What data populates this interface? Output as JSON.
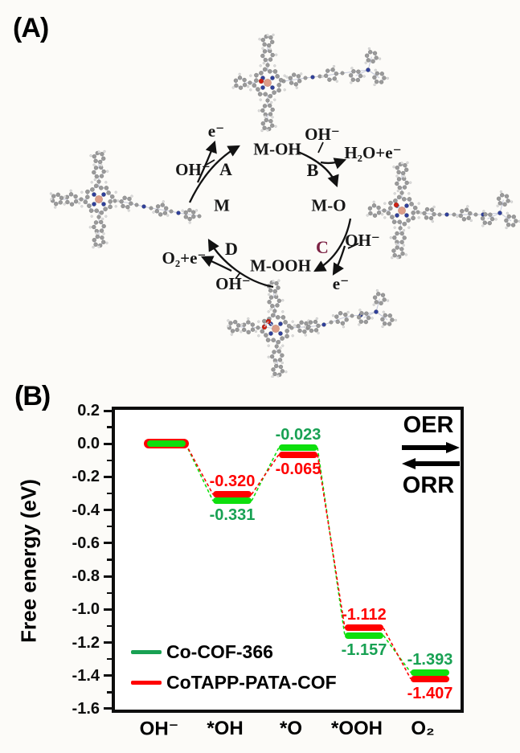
{
  "figure_title": "OER/ORR mechanism cycle and free-energy diagram",
  "colors": {
    "background": "#fcfbf8",
    "axis": "#0d0d0d",
    "step_c": "#7c2244",
    "green_series": "#18a153",
    "green_level": "#0ddf0d",
    "red_series": "#ff0000"
  },
  "panel_a": {
    "label": "(A)",
    "species": {
      "m": "M",
      "m_oh": "M-OH",
      "m_o": "M-O",
      "m_ooh": "M-OOH"
    },
    "steps": {
      "a": "A",
      "b": "B",
      "c": "C",
      "d": "D"
    },
    "reagents": {
      "electron_a": "e⁻",
      "hydroxide_a": "OH⁻",
      "hydroxide_b": "OH⁻",
      "water_electron": "H₂O+e⁻",
      "hydroxide_c": "OH⁻",
      "electron_c": "e⁻",
      "oxygen_electron": "O₂+e⁻",
      "hydroxide_d": "OH⁻"
    },
    "molecules": [
      "M-OH porphyrin COF fragment",
      "M porphyrin COF fragment",
      "M-O porphyrin COF fragment",
      "M-OOH porphyrin COF fragment"
    ]
  },
  "panel_b": {
    "label": "(B)",
    "direction_labels": {
      "forward": "OER",
      "reverse": "ORR"
    }
  },
  "chart_data": {
    "type": "line",
    "variant": "free-energy-step-diagram",
    "title": "",
    "xlabel": "",
    "ylabel": "Free energy (eV)",
    "categories": [
      "OH⁻",
      "*OH",
      "*O",
      "*OOH",
      "O₂"
    ],
    "series": [
      {
        "name": "Co-COF-366",
        "line_color": "#18a153",
        "level_color": "#0ddf0d",
        "label_color": "#18a153",
        "values": [
          0.0,
          -0.331,
          -0.023,
          -1.157,
          -1.393
        ]
      },
      {
        "name": "CoTAPP-PATA-COF",
        "line_color": "#ff0000",
        "level_color": "#ff0000",
        "label_color": "#ff0000",
        "values": [
          0.0,
          -0.32,
          -0.065,
          -1.112,
          -1.407
        ]
      }
    ],
    "ylim": [
      -1.6,
      0.2
    ],
    "yticks": [
      0.2,
      0.0,
      -0.2,
      -0.4,
      -0.6,
      -0.8,
      -1.0,
      -1.2,
      -1.4,
      -1.6
    ],
    "minor_tick_step": 0.1,
    "value_label_decimals": 3,
    "grid": false,
    "legend_position": "lower-left",
    "connector_style": "dashed"
  }
}
